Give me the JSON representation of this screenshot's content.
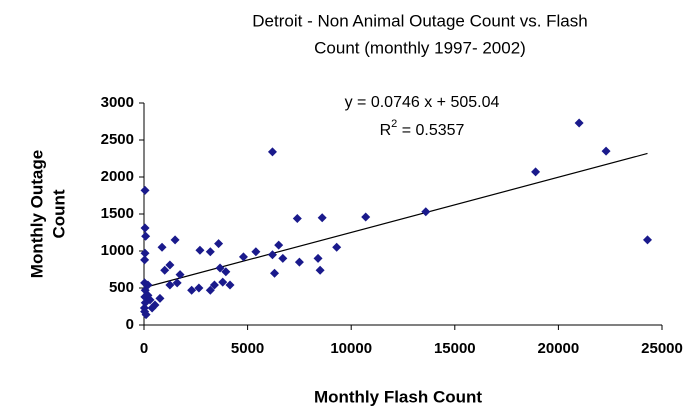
{
  "chart_data": {
    "type": "scatter",
    "title_lines": [
      "Detroit - Non Animal Outage Count vs. Flash",
      "Count (monthly 1997- 2002)"
    ],
    "x_label": "Monthly Flash Count",
    "y_label_lines": [
      "Monthly Outage",
      "Count"
    ],
    "trendline": {
      "slope": 0.0746,
      "intercept": 505.04,
      "equation": "y = 0.0746 x + 505.04",
      "r2_base": "R",
      "r2_sup": "2",
      "r2_rest": " = 0.5357"
    },
    "color": "#1a1a8c",
    "xlim": [
      0,
      25000
    ],
    "xticks": [
      0,
      5000,
      10000,
      15000,
      20000,
      25000
    ],
    "ylim": [
      0,
      3000
    ],
    "yticks": [
      0,
      500,
      1000,
      1500,
      2000,
      2500,
      3000
    ],
    "x": [
      50,
      50,
      80,
      50,
      30,
      30,
      60,
      40,
      60,
      20,
      30,
      100,
      190,
      190,
      290,
      390,
      530,
      770,
      870,
      1250,
      1000,
      1500,
      1740,
      1600,
      1250,
      2650,
      3200,
      3400,
      3800,
      3950,
      3670,
      4150,
      2300,
      3600,
      3200,
      2700,
      6200,
      13600,
      10700,
      8600,
      7400,
      9300,
      8400,
      7500,
      6700,
      6500,
      5400,
      4800,
      6200,
      6300,
      8500,
      18900,
      21000,
      22300,
      24300
    ],
    "y": [
      1820,
      1310,
      1200,
      970,
      880,
      570,
      470,
      380,
      300,
      230,
      180,
      140,
      540,
      400,
      340,
      230,
      270,
      360,
      1050,
      810,
      740,
      1150,
      680,
      570,
      540,
      500,
      470,
      540,
      580,
      720,
      770,
      540,
      470,
      1100,
      990,
      1010,
      2340,
      1530,
      1460,
      1450,
      1440,
      1050,
      900,
      850,
      900,
      1080,
      990,
      920,
      950,
      700,
      740,
      2070,
      2730,
      2350,
      1150
    ]
  }
}
